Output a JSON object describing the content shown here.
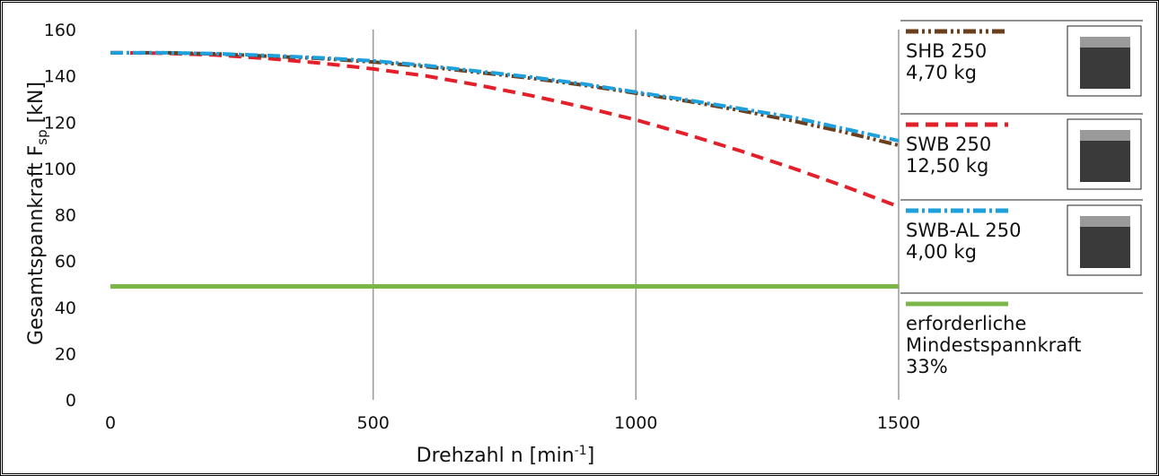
{
  "chart_data": {
    "type": "line",
    "y_label": {
      "text": "Gesamtspannkraft F",
      "sub": "sp",
      "after": " [kN]"
    },
    "x_label": {
      "text": "Drehzahl n [min",
      "sup": "-1",
      "after": "]"
    },
    "x": [
      0,
      100,
      200,
      300,
      400,
      500,
      600,
      700,
      800,
      900,
      1000,
      1100,
      1200,
      1300,
      1400,
      1500
    ],
    "xlim": [
      0,
      1500
    ],
    "xticks": [
      0,
      500,
      1000,
      1500
    ],
    "ylim": [
      0,
      160
    ],
    "yticks": [
      0,
      20,
      40,
      60,
      80,
      100,
      120,
      140,
      160
    ],
    "grid": "x",
    "series": [
      {
        "name": "SHB 250",
        "weight": "4,70 kg",
        "color": "#6b3f1d",
        "dash": "14 4 3 4 3 4",
        "values": [
          150,
          150,
          149.5,
          148.5,
          147.5,
          146,
          144,
          141.5,
          139,
          136,
          132.5,
          129,
          125,
          120.5,
          115.5,
          110
        ]
      },
      {
        "name": "SWB 250",
        "weight": "12,50 kg",
        "color": "#e3202a",
        "dash": "14 8",
        "values": [
          150,
          149.8,
          149,
          147.5,
          145.5,
          143,
          140,
          136,
          131.5,
          126.5,
          121,
          114.5,
          107.5,
          100,
          92,
          83.5
        ]
      },
      {
        "name": "SWB-AL 250",
        "weight": "4,00 kg",
        "color": "#1ea0dc",
        "dash": "14 4 3 4",
        "values": [
          150,
          150,
          149.6,
          148.8,
          147.8,
          146.5,
          144.5,
          142,
          139.5,
          136.5,
          133,
          129.5,
          125.8,
          122,
          117,
          112
        ]
      },
      {
        "name": "erforderliche Mindestspannkraft 33%",
        "color": "#7ab648",
        "dash": "none",
        "values": [
          49,
          49,
          49,
          49,
          49,
          49,
          49,
          49,
          49,
          49,
          49,
          49,
          49,
          49,
          49,
          49
        ]
      }
    ]
  }
}
